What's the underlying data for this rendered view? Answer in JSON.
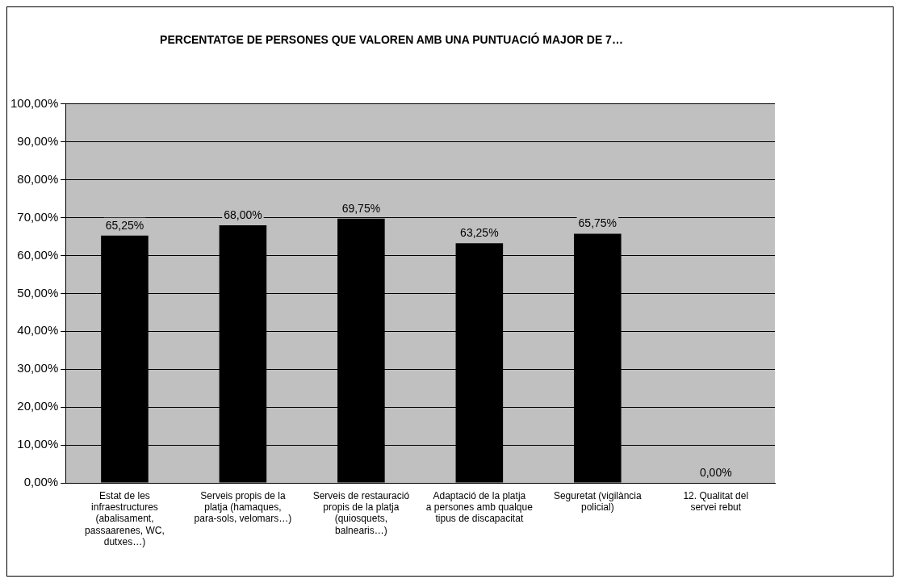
{
  "chart_data": {
    "type": "bar",
    "title": "PERCENTATGE DE PERSONES QUE VALOREN AMB UNA PUNTUACIÓ MAJOR DE 7…",
    "categories": [
      "Estat de les infraestructures (abalisament, passaarenes, WC, dutxes…)",
      "Serveis propis de la platja (hamaques, para-sols, velomars…)",
      "Serveis de restauració propis de la platja (quiosquets, balnearis…)",
      "Adaptació de la platja a persones amb qualque tipus de discapacitat",
      "Seguretat (vigilància policial)",
      "12. Qualitat del servei rebut"
    ],
    "values": [
      65.25,
      68.0,
      69.75,
      63.25,
      65.75,
      0
    ],
    "value_labels": [
      "65,25%",
      "68,00%",
      "69,75%",
      "63,25%",
      "65,75%",
      "0,00%"
    ],
    "color": "#000000",
    "ylim": [
      0,
      100
    ],
    "yticks": [
      {
        "value": 0,
        "label": "0,00%"
      },
      {
        "value": 10,
        "label": "10,00%"
      },
      {
        "value": 20,
        "label": "20,00%"
      },
      {
        "value": 30,
        "label": "30,00%"
      },
      {
        "value": 40,
        "label": "40,00%"
      },
      {
        "value": 50,
        "label": "50,00%"
      },
      {
        "value": 60,
        "label": "60,00%"
      },
      {
        "value": 70,
        "label": "70,00%"
      },
      {
        "value": 80,
        "label": "80,00%"
      },
      {
        "value": 90,
        "label": "90,00%"
      },
      {
        "value": 100,
        "label": "100,00%"
      }
    ],
    "grid": "y",
    "legend": false
  }
}
